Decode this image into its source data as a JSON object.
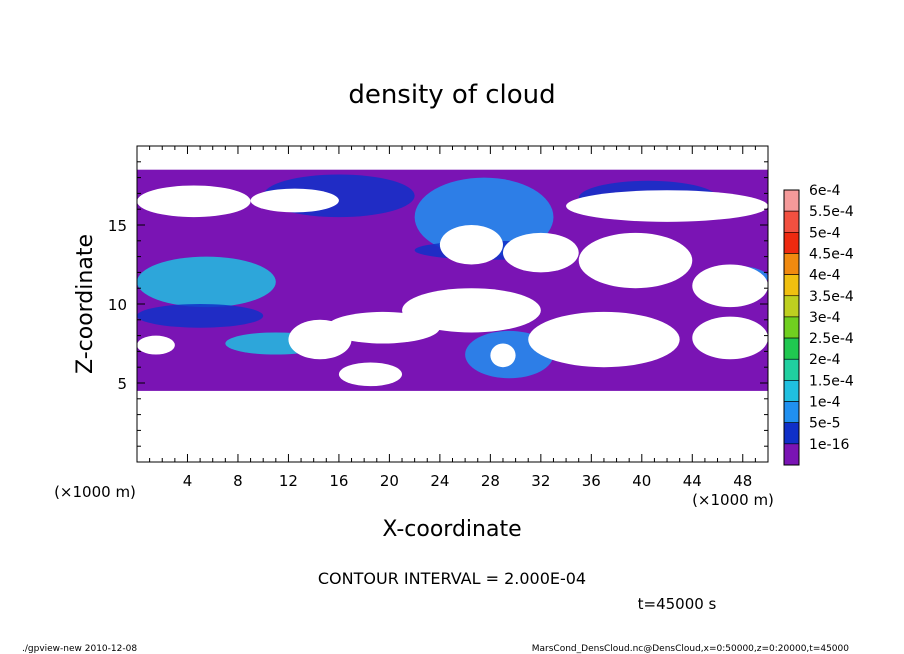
{
  "chart_data": {
    "type": "heatmap",
    "title": "density of cloud",
    "xlabel": "X-coordinate",
    "ylabel": "Z-coordinate",
    "x_unit_left": "(×1000 m)",
    "x_unit_right": "(×1000 m)",
    "xlim": [
      0,
      50
    ],
    "ylim": [
      0,
      20
    ],
    "xticks": [
      4,
      8,
      12,
      16,
      20,
      24,
      28,
      32,
      36,
      40,
      44,
      48
    ],
    "yticks": [
      5,
      10,
      15
    ],
    "contour_interval": "CONTOUR INTERVAL = 2.000E-04",
    "time_label": "t=45000 s",
    "footer_left": "./gpview-new  2010-12-08",
    "footer_right": "MarsCond_DensCloud.nc@DensCloud,x=0:50000,z=0:20000,t=45000",
    "colorbar": {
      "levels": [
        "6e-4",
        "5.5e-4",
        "5e-4",
        "4.5e-4",
        "4e-4",
        "3.5e-4",
        "3e-4",
        "2.5e-4",
        "2e-4",
        "1.5e-4",
        "1e-4",
        "5e-5",
        "1e-16"
      ],
      "colors": [
        "#f59a9a",
        "#f25040",
        "#ee2a10",
        "#f08a10",
        "#f0c010",
        "#bed020",
        "#70d020",
        "#20c850",
        "#20d0a0",
        "#20c0e0",
        "#2090f0",
        "#1030c8",
        "#7a14b4"
      ]
    },
    "cloud_layer": {
      "zmin": 4.5,
      "zmax": 18.5,
      "color": "#7a14b4"
    },
    "clear_regions": [
      {
        "x": [
          0,
          9
        ],
        "z": [
          15.5,
          17.5
        ]
      },
      {
        "x": [
          9,
          16
        ],
        "z": [
          15.8,
          17.3
        ]
      },
      {
        "x": [
          34,
          50
        ],
        "z": [
          15.2,
          17.2
        ]
      },
      {
        "x": [
          24,
          29
        ],
        "z": [
          12.5,
          15.0
        ]
      },
      {
        "x": [
          29,
          35
        ],
        "z": [
          12.0,
          14.5
        ]
      },
      {
        "x": [
          35,
          44
        ],
        "z": [
          11.0,
          14.5
        ]
      },
      {
        "x": [
          44,
          50
        ],
        "z": [
          9.8,
          12.5
        ]
      },
      {
        "x": [
          21,
          32
        ],
        "z": [
          8.2,
          11.0
        ]
      },
      {
        "x": [
          15,
          24
        ],
        "z": [
          7.5,
          9.5
        ]
      },
      {
        "x": [
          31,
          43
        ],
        "z": [
          6.0,
          9.5
        ]
      },
      {
        "x": [
          44,
          50
        ],
        "z": [
          6.5,
          9.2
        ]
      },
      {
        "x": [
          12,
          17
        ],
        "z": [
          6.5,
          9.0
        ]
      },
      {
        "x": [
          0,
          3
        ],
        "z": [
          6.8,
          8.0
        ]
      },
      {
        "x": [
          16,
          21
        ],
        "z": [
          4.8,
          6.3
        ]
      },
      {
        "x": [
          28,
          30
        ],
        "z": [
          6.0,
          7.5
        ]
      }
    ],
    "dense_regions": [
      {
        "x": [
          10,
          22
        ],
        "z": [
          15.5,
          18.2
        ],
        "level": "5e-5"
      },
      {
        "x": [
          22,
          33
        ],
        "z": [
          13.0,
          18.0
        ],
        "level": "1e-4"
      },
      {
        "x": [
          35,
          46
        ],
        "z": [
          15.6,
          17.8
        ],
        "level": "5e-5"
      },
      {
        "x": [
          0,
          11
        ],
        "z": [
          9.8,
          13.0
        ],
        "level": "1.5e-4"
      },
      {
        "x": [
          7,
          15
        ],
        "z": [
          6.8,
          8.2
        ],
        "level": "1.5e-4"
      },
      {
        "x": [
          26,
          33
        ],
        "z": [
          5.3,
          8.3
        ],
        "level": "1e-4"
      },
      {
        "x": [
          45,
          50
        ],
        "z": [
          11.0,
          12.4
        ],
        "level": "1e-4"
      },
      {
        "x": [
          0,
          10
        ],
        "z": [
          8.5,
          10.0
        ],
        "level": "5e-5"
      },
      {
        "x": [
          22,
          34
        ],
        "z": [
          12.8,
          14.0
        ],
        "level": "5e-5"
      }
    ]
  }
}
